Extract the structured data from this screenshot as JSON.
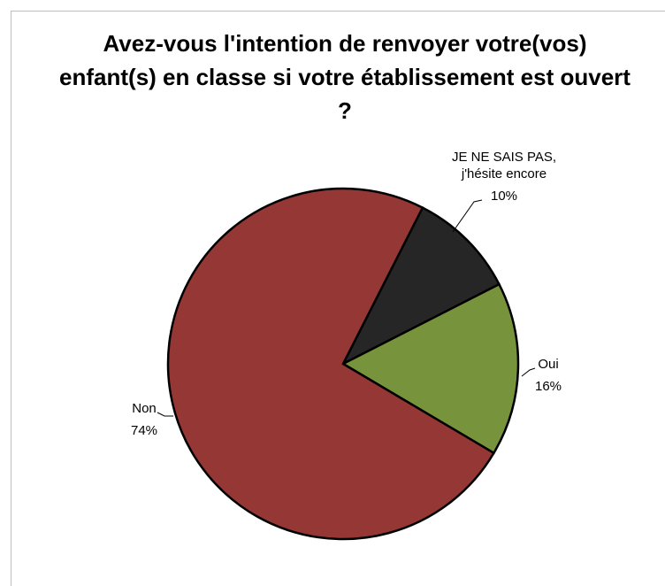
{
  "chart_data": {
    "type": "pie",
    "title": "Avez-vous l'intention de renvoyer votre(vos) enfant(s) en classe si votre établissement est ouvert ?",
    "categories": [
      "JE NE SAIS PAS, j'hésite encore",
      "Oui",
      "Non"
    ],
    "values": [
      10,
      16,
      74
    ],
    "value_labels": [
      "10%",
      "16%",
      "74%"
    ],
    "colors": [
      "#262626",
      "#77933c",
      "#953735"
    ]
  }
}
